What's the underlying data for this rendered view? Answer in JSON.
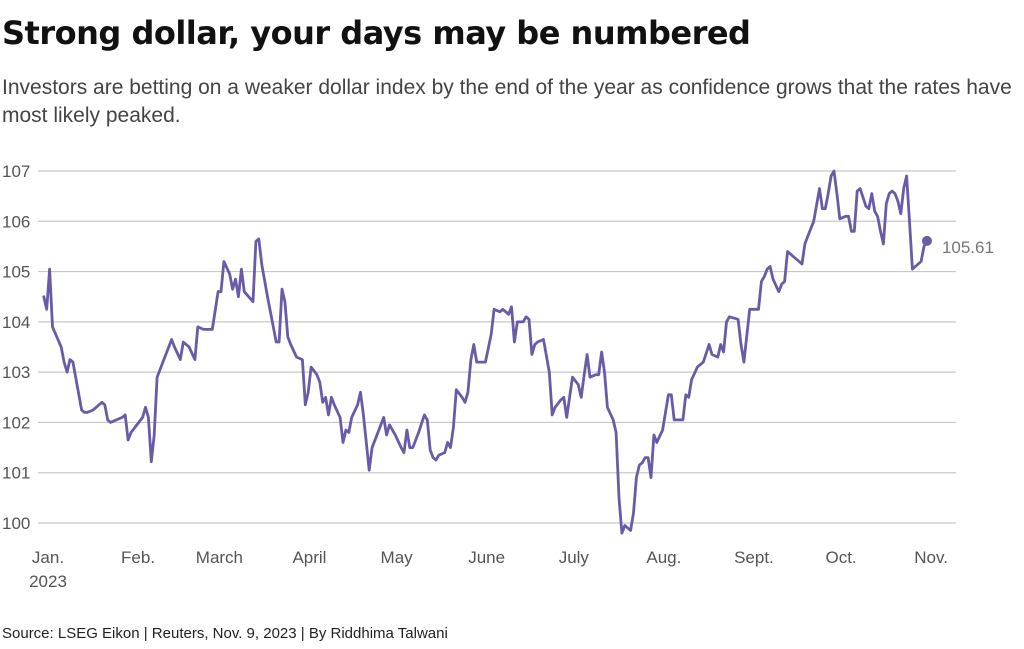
{
  "title": "Strong dollar, your days may be numbered",
  "subtitle": "Investors are betting on a weaker dollar index by the end of the year as confidence grows that the rates have most likely peaked.",
  "source": "Source: LSEG Eikon | Reuters, Nov. 9, 2023 | By Riddhima Talwani",
  "colors": {
    "line": "#6a5aa8",
    "grid": "#c8c8c8",
    "text": "#555555"
  },
  "chart_data": {
    "type": "line",
    "title": "Strong dollar, your days may be numbered",
    "xlabel": "",
    "ylabel": "",
    "ylim": [
      100,
      107
    ],
    "yticks": [
      100,
      101,
      102,
      103,
      104,
      105,
      106,
      107
    ],
    "xlim": [
      "2023-01-01",
      "2023-11-13"
    ],
    "xticks": [
      {
        "date": "2023-01-01",
        "label": "Jan.",
        "sublabel": "2023"
      },
      {
        "date": "2023-02-01",
        "label": "Feb.",
        "sublabel": ""
      },
      {
        "date": "2023-03-01",
        "label": "March",
        "sublabel": ""
      },
      {
        "date": "2023-04-01",
        "label": "April",
        "sublabel": ""
      },
      {
        "date": "2023-05-01",
        "label": "May",
        "sublabel": ""
      },
      {
        "date": "2023-06-01",
        "label": "June",
        "sublabel": ""
      },
      {
        "date": "2023-07-01",
        "label": "July",
        "sublabel": ""
      },
      {
        "date": "2023-08-01",
        "label": "Aug.",
        "sublabel": ""
      },
      {
        "date": "2023-09-01",
        "label": "Sept.",
        "sublabel": ""
      },
      {
        "date": "2023-10-01",
        "label": "Oct.",
        "sublabel": ""
      },
      {
        "date": "2023-11-01",
        "label": "Nov.",
        "sublabel": ""
      }
    ],
    "grid": true,
    "end_label": "105.61",
    "series": [
      {
        "name": "",
        "points": [
          [
            "2023-01-03",
            104.5
          ],
          [
            "2023-01-04",
            104.25
          ],
          [
            "2023-01-05",
            105.05
          ],
          [
            "2023-01-06",
            103.9
          ],
          [
            "2023-01-09",
            103.5
          ],
          [
            "2023-01-10",
            103.2
          ],
          [
            "2023-01-11",
            103.0
          ],
          [
            "2023-01-12",
            103.25
          ],
          [
            "2023-01-13",
            103.2
          ],
          [
            "2023-01-16",
            102.25
          ],
          [
            "2023-01-17",
            102.2
          ],
          [
            "2023-01-18",
            102.2
          ],
          [
            "2023-01-20",
            102.25
          ],
          [
            "2023-01-23",
            102.4
          ],
          [
            "2023-01-24",
            102.35
          ],
          [
            "2023-01-25",
            102.05
          ],
          [
            "2023-01-26",
            102.0
          ],
          [
            "2023-01-30",
            102.1
          ],
          [
            "2023-01-31",
            102.15
          ],
          [
            "2023-02-01",
            101.65
          ],
          [
            "2023-02-02",
            101.8
          ],
          [
            "2023-02-06",
            102.1
          ],
          [
            "2023-02-07",
            102.3
          ],
          [
            "2023-02-08",
            102.1
          ],
          [
            "2023-02-09",
            101.22
          ],
          [
            "2023-02-10",
            101.75
          ],
          [
            "2023-02-11",
            102.9
          ],
          [
            "2023-02-13",
            103.2
          ],
          [
            "2023-02-16",
            103.65
          ],
          [
            "2023-02-17",
            103.5
          ],
          [
            "2023-02-19",
            103.25
          ],
          [
            "2023-02-20",
            103.6
          ],
          [
            "2023-02-22",
            103.5
          ],
          [
            "2023-02-24",
            103.25
          ],
          [
            "2023-02-25",
            103.9
          ],
          [
            "2023-02-27",
            103.85
          ],
          [
            "2023-03-01",
            103.85
          ],
          [
            "2023-03-02",
            103.85
          ],
          [
            "2023-03-04",
            104.6
          ],
          [
            "2023-03-05",
            104.6
          ],
          [
            "2023-03-06",
            105.2
          ],
          [
            "2023-03-08",
            104.95
          ],
          [
            "2023-03-09",
            104.65
          ],
          [
            "2023-03-10",
            104.85
          ],
          [
            "2023-03-11",
            104.5
          ],
          [
            "2023-03-12",
            105.05
          ],
          [
            "2023-03-13",
            104.6
          ],
          [
            "2023-03-16",
            104.4
          ],
          [
            "2023-03-17",
            105.6
          ],
          [
            "2023-03-18",
            105.65
          ],
          [
            "2023-03-19",
            105.15
          ],
          [
            "2023-03-21",
            104.5
          ],
          [
            "2023-03-23",
            103.9
          ],
          [
            "2023-03-24",
            103.6
          ],
          [
            "2023-03-25",
            103.6
          ],
          [
            "2023-03-26",
            104.65
          ],
          [
            "2023-03-27",
            104.4
          ],
          [
            "2023-03-28",
            103.7
          ],
          [
            "2023-03-29",
            103.55
          ],
          [
            "2023-03-31",
            103.3
          ],
          [
            "2023-04-02",
            103.25
          ],
          [
            "2023-04-03",
            102.35
          ],
          [
            "2023-04-04",
            102.6
          ],
          [
            "2023-04-05",
            103.1
          ],
          [
            "2023-04-07",
            102.95
          ],
          [
            "2023-04-08",
            102.8
          ],
          [
            "2023-04-09",
            102.4
          ],
          [
            "2023-04-10",
            102.5
          ],
          [
            "2023-04-11",
            102.15
          ],
          [
            "2023-04-12",
            102.5
          ],
          [
            "2023-04-13",
            102.35
          ],
          [
            "2023-04-15",
            102.1
          ],
          [
            "2023-04-16",
            101.6
          ],
          [
            "2023-04-17",
            101.85
          ],
          [
            "2023-04-18",
            101.8
          ],
          [
            "2023-04-19",
            102.1
          ],
          [
            "2023-04-21",
            102.35
          ],
          [
            "2023-04-22",
            102.6
          ],
          [
            "2023-04-23",
            102.15
          ],
          [
            "2023-04-24",
            101.6
          ],
          [
            "2023-04-25",
            101.05
          ],
          [
            "2023-04-26",
            101.5
          ],
          [
            "2023-04-28",
            101.8
          ],
          [
            "2023-04-30",
            102.1
          ],
          [
            "2023-05-01",
            101.75
          ],
          [
            "2023-05-02",
            101.95
          ],
          [
            "2023-05-04",
            101.75
          ],
          [
            "2023-05-06",
            101.5
          ],
          [
            "2023-05-07",
            101.4
          ],
          [
            "2023-05-08",
            101.85
          ],
          [
            "2023-05-09",
            101.5
          ],
          [
            "2023-05-10",
            101.5
          ],
          [
            "2023-05-12",
            101.8
          ],
          [
            "2023-05-14",
            102.15
          ],
          [
            "2023-05-15",
            102.05
          ],
          [
            "2023-05-16",
            101.45
          ],
          [
            "2023-05-17",
            101.3
          ],
          [
            "2023-05-18",
            101.25
          ],
          [
            "2023-05-19",
            101.35
          ],
          [
            "2023-05-21",
            101.4
          ],
          [
            "2023-05-22",
            101.6
          ],
          [
            "2023-05-23",
            101.5
          ],
          [
            "2023-05-24",
            101.9
          ],
          [
            "2023-05-25",
            102.65
          ],
          [
            "2023-05-27",
            102.5
          ],
          [
            "2023-05-28",
            102.4
          ],
          [
            "2023-05-29",
            102.6
          ],
          [
            "2023-05-30",
            103.25
          ],
          [
            "2023-05-31",
            103.55
          ],
          [
            "2023-06-01",
            103.2
          ],
          [
            "2023-06-03",
            103.2
          ],
          [
            "2023-06-04",
            103.2
          ],
          [
            "2023-06-06",
            103.75
          ],
          [
            "2023-06-07",
            104.25
          ],
          [
            "2023-06-09",
            104.2
          ],
          [
            "2023-06-10",
            104.25
          ],
          [
            "2023-06-12",
            104.15
          ],
          [
            "2023-06-13",
            104.3
          ],
          [
            "2023-06-14",
            103.6
          ],
          [
            "2023-06-15",
            104.0
          ],
          [
            "2023-06-16",
            104.0
          ],
          [
            "2023-06-17",
            104.0
          ],
          [
            "2023-06-18",
            104.1
          ],
          [
            "2023-06-19",
            104.05
          ],
          [
            "2023-06-20",
            103.35
          ],
          [
            "2023-06-21",
            103.55
          ],
          [
            "2023-06-22",
            103.6
          ],
          [
            "2023-06-24",
            103.65
          ],
          [
            "2023-06-26",
            103.0
          ],
          [
            "2023-06-27",
            102.15
          ],
          [
            "2023-06-28",
            102.3
          ],
          [
            "2023-06-30",
            102.45
          ],
          [
            "2023-07-01",
            102.5
          ],
          [
            "2023-07-02",
            102.1
          ],
          [
            "2023-07-04",
            102.9
          ],
          [
            "2023-07-06",
            102.75
          ],
          [
            "2023-07-07",
            102.5
          ],
          [
            "2023-07-08",
            102.95
          ],
          [
            "2023-07-09",
            103.35
          ],
          [
            "2023-07-10",
            102.9
          ],
          [
            "2023-07-12",
            102.95
          ],
          [
            "2023-07-13",
            102.95
          ],
          [
            "2023-07-14",
            103.4
          ],
          [
            "2023-07-15",
            103.0
          ],
          [
            "2023-07-16",
            102.3
          ],
          [
            "2023-07-18",
            102.05
          ],
          [
            "2023-07-19",
            101.8
          ],
          [
            "2023-07-20",
            100.5
          ],
          [
            "2023-07-21",
            99.8
          ],
          [
            "2023-07-22",
            99.95
          ],
          [
            "2023-07-24",
            99.85
          ],
          [
            "2023-07-25",
            100.2
          ],
          [
            "2023-07-26",
            100.9
          ],
          [
            "2023-07-27",
            101.15
          ],
          [
            "2023-07-28",
            101.2
          ],
          [
            "2023-07-29",
            101.3
          ],
          [
            "2023-07-30",
            101.3
          ],
          [
            "2023-07-31",
            100.9
          ],
          [
            "2023-08-01",
            101.75
          ],
          [
            "2023-08-02",
            101.6
          ],
          [
            "2023-08-04",
            101.85
          ],
          [
            "2023-08-05",
            102.2
          ],
          [
            "2023-08-06",
            102.55
          ],
          [
            "2023-08-07",
            102.55
          ],
          [
            "2023-08-08",
            102.05
          ],
          [
            "2023-08-11",
            102.05
          ],
          [
            "2023-08-12",
            102.55
          ],
          [
            "2023-08-13",
            102.5
          ],
          [
            "2023-08-14",
            102.85
          ],
          [
            "2023-08-16",
            103.1
          ],
          [
            "2023-08-18",
            103.2
          ],
          [
            "2023-08-20",
            103.55
          ],
          [
            "2023-08-21",
            103.35
          ],
          [
            "2023-08-23",
            103.3
          ],
          [
            "2023-08-24",
            103.55
          ],
          [
            "2023-08-25",
            103.4
          ],
          [
            "2023-08-26",
            104.0
          ],
          [
            "2023-08-27",
            104.1
          ],
          [
            "2023-08-30",
            104.05
          ],
          [
            "2023-08-31",
            103.55
          ],
          [
            "2023-09-01",
            103.2
          ],
          [
            "2023-09-03",
            104.25
          ],
          [
            "2023-09-05",
            104.25
          ],
          [
            "2023-09-06",
            104.25
          ],
          [
            "2023-09-07",
            104.8
          ],
          [
            "2023-09-08",
            104.9
          ],
          [
            "2023-09-09",
            105.05
          ],
          [
            "2023-09-10",
            105.1
          ],
          [
            "2023-09-11",
            104.85
          ],
          [
            "2023-09-13",
            104.6
          ],
          [
            "2023-09-14",
            104.75
          ],
          [
            "2023-09-15",
            104.8
          ],
          [
            "2023-09-16",
            105.4
          ],
          [
            "2023-09-18",
            105.3
          ],
          [
            "2023-09-21",
            105.15
          ],
          [
            "2023-09-22",
            105.55
          ],
          [
            "2023-09-24",
            105.85
          ],
          [
            "2023-09-25",
            106.0
          ],
          [
            "2023-09-27",
            106.65
          ],
          [
            "2023-09-28",
            106.25
          ],
          [
            "2023-09-29",
            106.25
          ],
          [
            "2023-09-30",
            106.55
          ],
          [
            "2023-10-01",
            106.9
          ],
          [
            "2023-10-02",
            107.0
          ],
          [
            "2023-10-03",
            106.55
          ],
          [
            "2023-10-04",
            106.05
          ],
          [
            "2023-10-06",
            106.1
          ],
          [
            "2023-10-07",
            106.1
          ],
          [
            "2023-10-08",
            105.8
          ],
          [
            "2023-10-09",
            105.8
          ],
          [
            "2023-10-10",
            106.6
          ],
          [
            "2023-10-11",
            106.65
          ],
          [
            "2023-10-13",
            106.3
          ],
          [
            "2023-10-14",
            106.25
          ],
          [
            "2023-10-15",
            106.55
          ],
          [
            "2023-10-16",
            106.2
          ],
          [
            "2023-10-17",
            106.1
          ],
          [
            "2023-10-18",
            105.8
          ],
          [
            "2023-10-19",
            105.55
          ],
          [
            "2023-10-20",
            106.35
          ],
          [
            "2023-10-21",
            106.55
          ],
          [
            "2023-10-22",
            106.6
          ],
          [
            "2023-10-23",
            106.55
          ],
          [
            "2023-10-24",
            106.4
          ],
          [
            "2023-10-25",
            106.15
          ],
          [
            "2023-10-26",
            106.65
          ],
          [
            "2023-10-27",
            106.9
          ],
          [
            "2023-10-28",
            106.0
          ],
          [
            "2023-10-29",
            105.05
          ],
          [
            "2023-10-31",
            105.15
          ],
          [
            "2023-11-01",
            105.2
          ],
          [
            "2023-11-02",
            105.5
          ],
          [
            "2023-11-03",
            105.61
          ]
        ]
      }
    ]
  }
}
